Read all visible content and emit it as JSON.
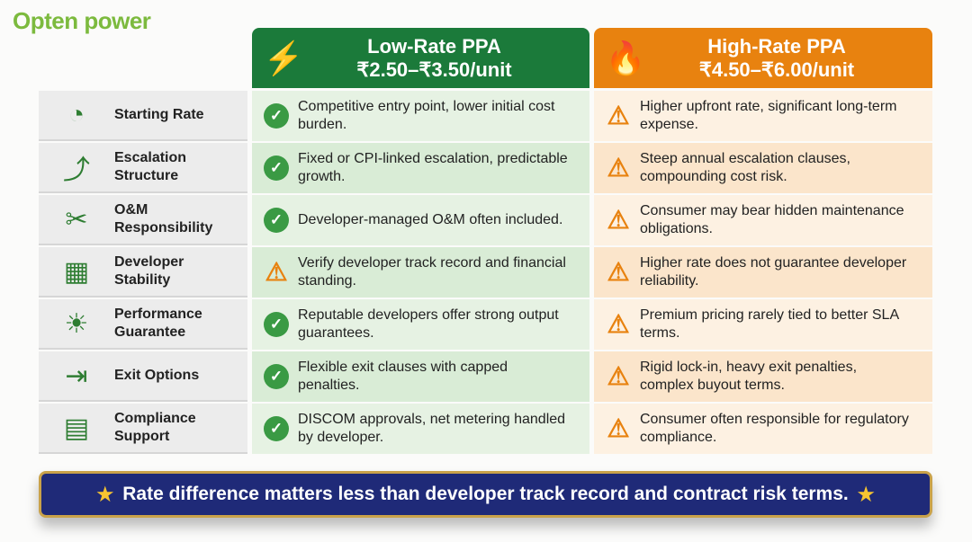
{
  "brand": "Opten power",
  "columns": [
    {
      "title": "Low-Rate PPA",
      "subtitle": "₹2.50–₹3.50/unit",
      "icon": "lightning-icon",
      "color": "#1b7a3a"
    },
    {
      "title": "High-Rate PPA",
      "subtitle": "₹4.50–₹6.00/unit",
      "icon": "flame-icon",
      "color": "#e8820f"
    }
  ],
  "rows": [
    {
      "label": "Starting Rate",
      "icon": "gauge-icon",
      "low": {
        "status": "check",
        "text": "Competitive entry point, lower initial cost burden."
      },
      "high": {
        "status": "warning",
        "text": "Higher upfront rate, significant long-term expense."
      }
    },
    {
      "label": "Escalation Structure",
      "icon": "stairs-icon",
      "low": {
        "status": "check",
        "text": "Fixed or CPI-linked escalation, predictable growth."
      },
      "high": {
        "status": "warning",
        "text": "Steep annual escalation clauses, compounding cost risk."
      }
    },
    {
      "label": "O&M Responsibility",
      "icon": "tools-icon",
      "low": {
        "status": "check",
        "text": "Developer-managed O&M often included."
      },
      "high": {
        "status": "warning",
        "text": "Consumer may bear hidden maintenance obligations."
      }
    },
    {
      "label": "Developer Stability",
      "icon": "building-shield-icon",
      "low": {
        "status": "warning",
        "text": "Verify developer track record and financial standing."
      },
      "high": {
        "status": "warning",
        "text": "Higher rate does not guarantee developer reliability."
      }
    },
    {
      "label": "Performance Guarantee",
      "icon": "solar-panel-icon",
      "low": {
        "status": "check",
        "text": "Reputable developers offer strong output guarantees."
      },
      "high": {
        "status": "warning",
        "text": "Premium pricing rarely tied to better SLA terms."
      }
    },
    {
      "label": "Exit Options",
      "icon": "exit-door-icon",
      "low": {
        "status": "check",
        "text": "Flexible exit clauses with capped penalties."
      },
      "high": {
        "status": "warning",
        "text": "Rigid lock-in, heavy exit penalties, complex buyout terms."
      }
    },
    {
      "label": "Compliance Support",
      "icon": "document-check-icon",
      "low": {
        "status": "check",
        "text": "DISCOM approvals, net metering handled by developer."
      },
      "high": {
        "status": "warning",
        "text": "Consumer often responsible for regulatory compliance."
      }
    }
  ],
  "banner": "Rate difference matters less than developer track record and contract risk terms."
}
